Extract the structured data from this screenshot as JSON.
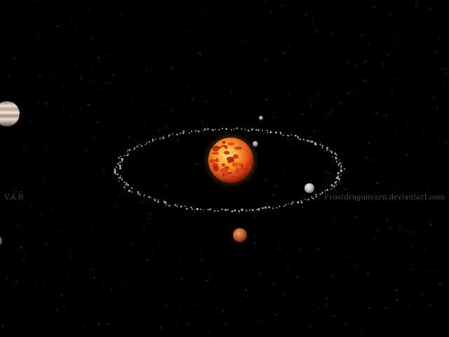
{
  "watermark": {
    "left_text": "V.A.R",
    "right_text": "Frostdragonvaru.deviantart.com"
  },
  "scene": {
    "background_color": "#000000",
    "sun_colors": [
      "#ffd04a",
      "#f07a1a",
      "#b8220c"
    ],
    "ring_particle_color": "#b8b8a8",
    "bodies": [
      {
        "name": "sun-icon",
        "color": "#e86a1c"
      },
      {
        "name": "gas-giant-icon",
        "color": "#cfc7bc"
      },
      {
        "name": "inner-moon-icon",
        "color": "#8fa6ad"
      },
      {
        "name": "outer-moon-icon",
        "color": "#9aa6a8"
      },
      {
        "name": "grey-planet-icon",
        "color": "#c6c2bc"
      },
      {
        "name": "mars-planet-icon",
        "color": "#c06a3a"
      }
    ]
  }
}
